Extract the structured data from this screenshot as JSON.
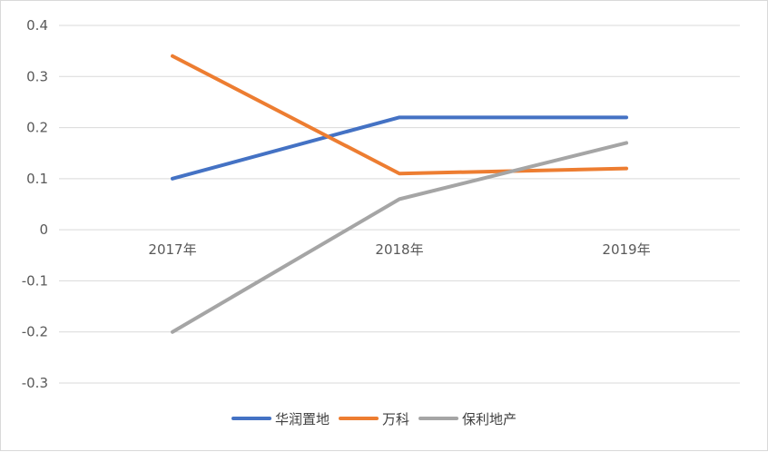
{
  "chart_data": {
    "type": "line",
    "categories": [
      "2017年",
      "2018年",
      "2019年"
    ],
    "series": [
      {
        "name": "华润置地",
        "color": "#4472c4",
        "values": [
          0.1,
          0.22,
          0.22
        ]
      },
      {
        "name": "万科",
        "color": "#ed7d31",
        "values": [
          0.34,
          0.11,
          0.12
        ]
      },
      {
        "name": "保利地产",
        "color": "#a5a5a5",
        "values": [
          -0.2,
          0.06,
          0.17
        ]
      }
    ],
    "ylim": [
      -0.3,
      0.4
    ],
    "yticks": [
      "0.4",
      "0.3",
      "0.2",
      "0.1",
      "0",
      "-0.1",
      "-0.2",
      "-0.3"
    ],
    "grid": true,
    "legend": "bottom"
  }
}
